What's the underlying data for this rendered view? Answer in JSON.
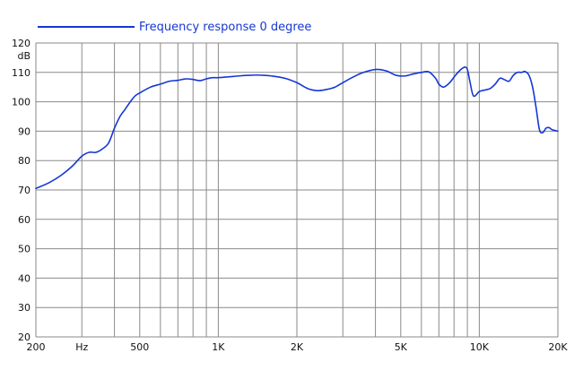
{
  "chart_data": {
    "type": "line",
    "title": "",
    "xlabel": "",
    "ylabel": "",
    "y_unit": "dB",
    "x_unit": "Hz",
    "x_scale": "log",
    "xlim": [
      200,
      20000
    ],
    "ylim": [
      20,
      120
    ],
    "grid": true,
    "legend_position": "top-left",
    "line_color": "#1537d6",
    "grid_color": "#8a8a8a",
    "x_ticks": [
      {
        "value": 200,
        "label": "200"
      },
      {
        "value": 300,
        "label": "Hz"
      },
      {
        "value": 500,
        "label": "500"
      },
      {
        "value": 1000,
        "label": "1K"
      },
      {
        "value": 2000,
        "label": "2K"
      },
      {
        "value": 5000,
        "label": "5K"
      },
      {
        "value": 10000,
        "label": "10K"
      },
      {
        "value": 20000,
        "label": "20K"
      }
    ],
    "x_gridlines": [
      300,
      400,
      500,
      600,
      700,
      800,
      900,
      1000,
      2000,
      3000,
      4000,
      5000,
      6000,
      7000,
      8000,
      9000,
      10000
    ],
    "y_ticks": [
      20,
      30,
      40,
      50,
      60,
      70,
      80,
      90,
      100,
      110,
      120
    ],
    "series": [
      {
        "name": "Frequency response 0 degree",
        "x": [
          200,
          225,
          250,
          275,
          300,
          320,
          340,
          360,
          380,
          400,
          420,
          440,
          460,
          480,
          500,
          550,
          600,
          650,
          700,
          750,
          800,
          850,
          900,
          950,
          1000,
          1100,
          1200,
          1300,
          1400,
          1500,
          1600,
          1800,
          2000,
          2200,
          2400,
          2600,
          2800,
          3000,
          3300,
          3600,
          4000,
          4400,
          4800,
          5200,
          5600,
          6000,
          6400,
          6800,
          7000,
          7300,
          7700,
          8100,
          8500,
          8800,
          9000,
          9200,
          9500,
          10000,
          10500,
          11000,
          11500,
          12000,
          12500,
          13000,
          13500,
          14000,
          14500,
          15000,
          15500,
          16000,
          16500,
          17000,
          17500,
          18000,
          18500,
          19000,
          20000
        ],
        "y": [
          70.5,
          72.5,
          75,
          78,
          81.5,
          82.8,
          82.8,
          84,
          86,
          91,
          95,
          97.5,
          100,
          102,
          103,
          105,
          106,
          107,
          107.3,
          107.8,
          107.6,
          107.2,
          107.8,
          108.2,
          108.2,
          108.5,
          108.8,
          109,
          109.1,
          109,
          108.8,
          108,
          106.5,
          104.5,
          103.8,
          104.2,
          105,
          106.5,
          108.5,
          110,
          111,
          110.5,
          109,
          108.8,
          109.5,
          110,
          110.2,
          108,
          106,
          105,
          106.5,
          109,
          111,
          111.8,
          111,
          107,
          102,
          103.5,
          104,
          104.5,
          106,
          108,
          107.5,
          107,
          109,
          110,
          110,
          110.3,
          109,
          105,
          98,
          90.5,
          89.5,
          91,
          91.2,
          90.5,
          90
        ]
      }
    ]
  }
}
